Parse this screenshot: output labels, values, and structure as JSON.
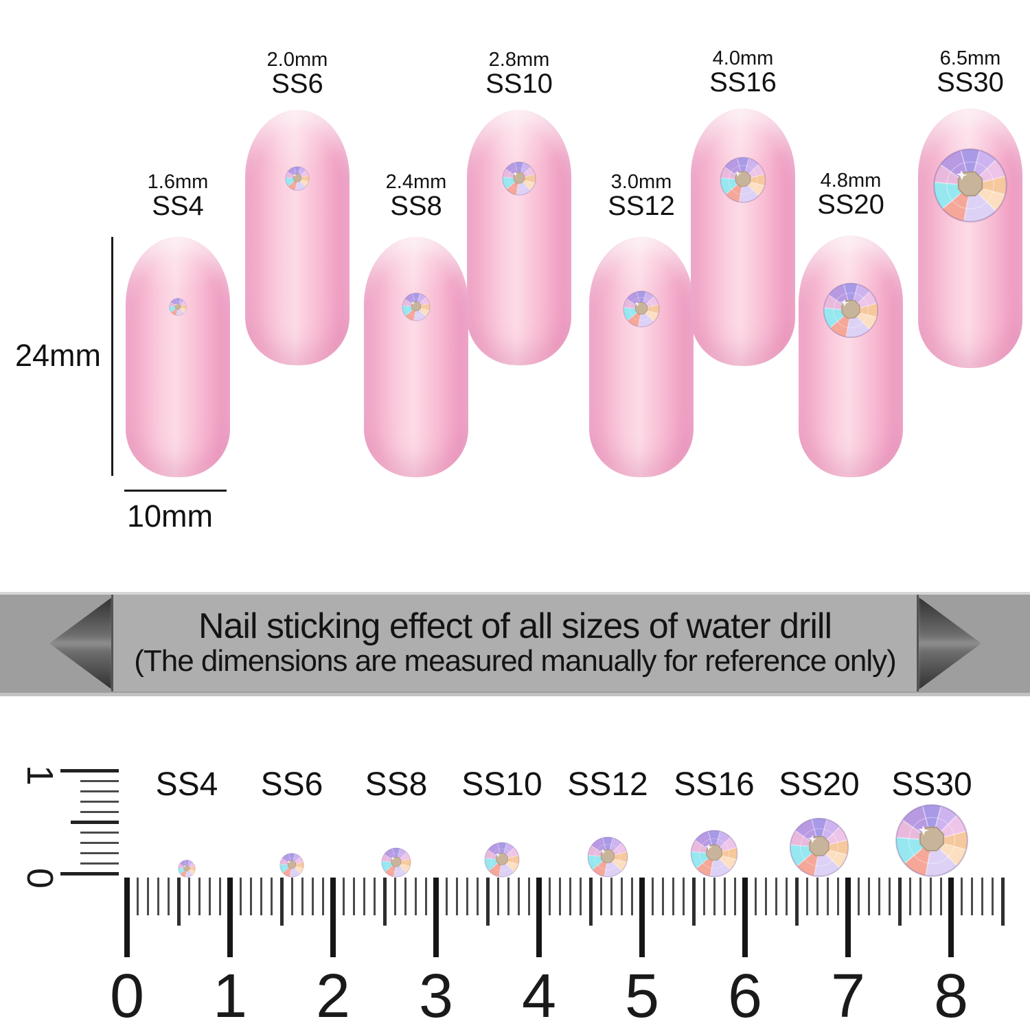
{
  "nails": [
    {
      "ss": "SS4",
      "mm": "1.6mm"
    },
    {
      "ss": "SS6",
      "mm": "2.0mm"
    },
    {
      "ss": "SS8",
      "mm": "2.4mm"
    },
    {
      "ss": "SS10",
      "mm": "2.8mm"
    },
    {
      "ss": "SS12",
      "mm": "3.0mm"
    },
    {
      "ss": "SS16",
      "mm": "4.0mm"
    },
    {
      "ss": "SS20",
      "mm": "4.8mm"
    },
    {
      "ss": "SS30",
      "mm": "6.5mm"
    }
  ],
  "dimensions": {
    "height_label": "24mm",
    "width_label": "10mm"
  },
  "banner": {
    "title": "Nail sticking effect of all sizes of water drill",
    "subtitle": "(The dimensions are measured manually for reference only)"
  },
  "ruler": {
    "stone_labels": [
      "SS4",
      "SS6",
      "SS8",
      "SS10",
      "SS12",
      "SS16",
      "SS20",
      "SS30"
    ],
    "cm_numbers": [
      "0",
      "1",
      "2",
      "3",
      "4",
      "5",
      "6",
      "7",
      "8"
    ],
    "vertical_scale": {
      "top_label": "1",
      "bottom_label": "0"
    }
  },
  "colors": {
    "nail_pink": "#f8bcd3",
    "banner_gray": "#9e9e9e",
    "banner_panel": "#aeaeae",
    "text": "#111111"
  }
}
